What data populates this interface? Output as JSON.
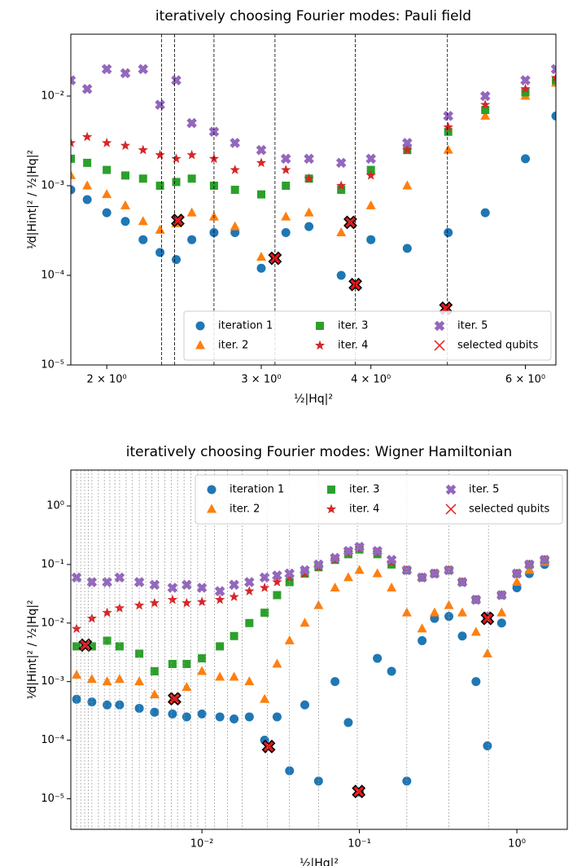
{
  "chart_data": [
    {
      "type": "scatter",
      "title": "iteratively choosing Fourier modes: Pauli field",
      "x_label": "½|Hq|²",
      "y_label": "¹⁄d|Hint|²  /  ½|Hq|²",
      "xscale": "log",
      "yscale": "log",
      "legend": "lower right",
      "xlim": [
        1.82,
        6.5
      ],
      "ylim": [
        1e-05,
        0.049
      ],
      "xticks": [
        {
          "value": 2,
          "label": "2 × 10⁰"
        },
        {
          "value": 3,
          "label": "3 × 10⁰"
        },
        {
          "value": 4,
          "label": "4 × 10⁰"
        },
        {
          "value": 6,
          "label": "6 × 10⁰"
        }
      ],
      "yticks": [
        {
          "value": 1e-05,
          "label": "10⁻⁵"
        },
        {
          "value": 0.0001,
          "label": "10⁻⁴"
        },
        {
          "value": 0.001,
          "label": "10⁻³"
        },
        {
          "value": 0.01,
          "label": "10⁻²"
        }
      ],
      "vlines": [
        2.31,
        2.39,
        2.65,
        3.11,
        3.84,
        4.89
      ],
      "x": [
        1.82,
        1.9,
        2.0,
        2.1,
        2.2,
        2.3,
        2.4,
        2.5,
        2.65,
        2.8,
        3.0,
        3.2,
        3.4,
        3.7,
        4.0,
        4.4,
        4.9,
        5.4,
        6.0,
        6.5
      ],
      "series": [
        {
          "name": "iteration 1",
          "color": "#1f77b4",
          "marker": "circle",
          "values": [
            0.0009,
            0.0007,
            0.0005,
            0.0004,
            0.00025,
            0.00018,
            0.00015,
            0.00025,
            0.0003,
            0.0003,
            0.00012,
            0.0003,
            0.00035,
            0.0001,
            0.00025,
            0.0002,
            0.0003,
            0.0005,
            0.002,
            0.006
          ]
        },
        {
          "name": "iter. 2",
          "color": "#ff7f0e",
          "marker": "triangle",
          "values": [
            0.0013,
            0.001,
            0.0008,
            0.0006,
            0.0004,
            0.00032,
            0.00038,
            0.0005,
            0.00045,
            0.00035,
            0.00016,
            0.00045,
            0.0005,
            0.0003,
            0.0006,
            0.001,
            0.0025,
            0.006,
            0.01,
            0.014
          ]
        },
        {
          "name": "iter. 3",
          "color": "#2ca02c",
          "marker": "square",
          "values": [
            0.002,
            0.0018,
            0.0015,
            0.0013,
            0.0012,
            0.001,
            0.0011,
            0.0012,
            0.001,
            0.0009,
            0.0008,
            0.001,
            0.0012,
            0.0009,
            0.0015,
            0.0025,
            0.004,
            0.007,
            0.011,
            0.015
          ]
        },
        {
          "name": "iter. 4",
          "color": "#d62728",
          "marker": "star",
          "values": [
            0.003,
            0.0035,
            0.003,
            0.0028,
            0.0025,
            0.0022,
            0.002,
            0.0022,
            0.002,
            0.0015,
            0.0018,
            0.0015,
            0.0012,
            0.001,
            0.0013,
            0.0025,
            0.0045,
            0.008,
            0.012,
            0.016
          ]
        },
        {
          "name": "iter. 5",
          "color": "#9467bd",
          "marker": "xfill",
          "values": [
            0.015,
            0.012,
            0.02,
            0.018,
            0.02,
            0.008,
            0.015,
            0.005,
            0.004,
            0.003,
            0.0025,
            0.002,
            0.002,
            0.0018,
            0.002,
            0.003,
            0.006,
            0.01,
            0.015,
            0.02
          ]
        },
        {
          "name": "selected qubits",
          "color": "#e31a1c",
          "marker": "selected",
          "x": [
            2.41,
            3.11,
            3.79,
            3.84,
            4.87
          ],
          "values": [
            0.00041,
            0.000155,
            0.00039,
            7.9e-05,
            4.3e-05
          ]
        }
      ]
    },
    {
      "type": "scatter",
      "title": "iteratively choosing Fourier modes: Wigner Hamiltonian",
      "x_label": "½|Hq|²",
      "y_label": "¹⁄d|Hint|²  /  ½|Hq|²",
      "xscale": "log",
      "yscale": "log",
      "legend": "upper right",
      "xlim": [
        0.00147,
        2.09
      ],
      "ylim": [
        3e-06,
        4.1
      ],
      "xticks": [
        {
          "value": 0.01,
          "label": "10⁻²"
        },
        {
          "value": 0.1,
          "label": "10⁻¹"
        },
        {
          "value": 1,
          "label": "10⁰"
        }
      ],
      "yticks": [
        {
          "value": 1e-05,
          "label": "10⁻⁵"
        },
        {
          "value": 0.0001,
          "label": "10⁻⁴"
        },
        {
          "value": 0.001,
          "label": "10⁻³"
        },
        {
          "value": 0.01,
          "label": "10⁻²"
        },
        {
          "value": 0.1,
          "label": "10⁻¹"
        },
        {
          "value": 1,
          "label": "10⁰"
        }
      ],
      "vlines": [
        0.0016,
        0.0017,
        0.0018,
        0.0019,
        0.002,
        0.0022,
        0.0024,
        0.0026,
        0.0028,
        0.003,
        0.0033,
        0.0036,
        0.004,
        0.0044,
        0.0048,
        0.0053,
        0.0058,
        0.0064,
        0.007,
        0.0077,
        0.0085,
        0.0094,
        0.0105,
        0.012,
        0.0145,
        0.018,
        0.026,
        0.036,
        0.055,
        0.097,
        0.2,
        0.37,
        0.66
      ],
      "x": [
        0.0016,
        0.002,
        0.0025,
        0.003,
        0.004,
        0.005,
        0.0065,
        0.008,
        0.01,
        0.013,
        0.016,
        0.02,
        0.025,
        0.03,
        0.036,
        0.045,
        0.055,
        0.07,
        0.085,
        0.1,
        0.13,
        0.16,
        0.2,
        0.25,
        0.3,
        0.37,
        0.45,
        0.55,
        0.65,
        0.8,
        1.0,
        1.2,
        1.5
      ],
      "series": [
        {
          "name": "iteration 1",
          "color": "#1f77b4",
          "marker": "circle",
          "values": [
            0.0005,
            0.00045,
            0.0004,
            0.0004,
            0.00035,
            0.0003,
            0.00028,
            0.00025,
            0.00028,
            0.00025,
            0.00023,
            0.00025,
            0.0001,
            0.00025,
            3e-05,
            0.0004,
            2e-05,
            0.001,
            0.0002,
            1.3e-05,
            0.0025,
            0.0015,
            2e-05,
            0.005,
            0.012,
            0.013,
            0.006,
            0.001,
            8e-05,
            0.01,
            0.04,
            0.07,
            0.1
          ]
        },
        {
          "name": "iter. 2",
          "color": "#ff7f0e",
          "marker": "triangle",
          "values": [
            0.0013,
            0.0011,
            0.001,
            0.0011,
            0.001,
            0.0006,
            0.0005,
            0.0008,
            0.0015,
            0.0012,
            0.0012,
            0.001,
            0.0005,
            0.002,
            0.005,
            0.01,
            0.02,
            0.04,
            0.06,
            0.08,
            0.07,
            0.04,
            0.015,
            0.008,
            0.015,
            0.02,
            0.015,
            0.007,
            0.003,
            0.015,
            0.05,
            0.08,
            0.11
          ]
        },
        {
          "name": "iter. 3",
          "color": "#2ca02c",
          "marker": "square",
          "values": [
            0.004,
            0.004,
            0.005,
            0.004,
            0.003,
            0.0015,
            0.002,
            0.002,
            0.0025,
            0.004,
            0.006,
            0.01,
            0.015,
            0.03,
            0.05,
            0.07,
            0.09,
            0.12,
            0.15,
            0.18,
            0.15,
            0.1,
            0.08,
            0.06,
            0.07,
            0.08,
            0.05,
            0.025,
            0.012,
            0.03,
            0.07,
            0.1,
            0.12
          ]
        },
        {
          "name": "iter. 4",
          "color": "#d62728",
          "marker": "star",
          "values": [
            0.008,
            0.012,
            0.015,
            0.018,
            0.02,
            0.022,
            0.025,
            0.022,
            0.023,
            0.025,
            0.028,
            0.035,
            0.04,
            0.05,
            0.06,
            0.07,
            0.09,
            0.12,
            0.16,
            0.19,
            0.16,
            0.11,
            0.08,
            0.06,
            0.07,
            0.08,
            0.05,
            0.025,
            0.013,
            0.03,
            0.07,
            0.1,
            0.12
          ]
        },
        {
          "name": "iter. 5",
          "color": "#9467bd",
          "marker": "xfill",
          "values": [
            0.06,
            0.05,
            0.05,
            0.06,
            0.05,
            0.045,
            0.04,
            0.045,
            0.04,
            0.035,
            0.045,
            0.05,
            0.06,
            0.065,
            0.07,
            0.08,
            0.1,
            0.13,
            0.17,
            0.2,
            0.17,
            0.12,
            0.08,
            0.06,
            0.07,
            0.08,
            0.05,
            0.025,
            0.013,
            0.03,
            0.07,
            0.1,
            0.12
          ]
        },
        {
          "name": "selected qubits",
          "color": "#e31a1c",
          "marker": "selected",
          "x": [
            0.00182,
            0.0067,
            0.0265,
            0.099,
            0.65
          ],
          "values": [
            0.0042,
            0.00051,
            7.8e-05,
            1.33e-05,
            0.012
          ]
        }
      ]
    }
  ]
}
